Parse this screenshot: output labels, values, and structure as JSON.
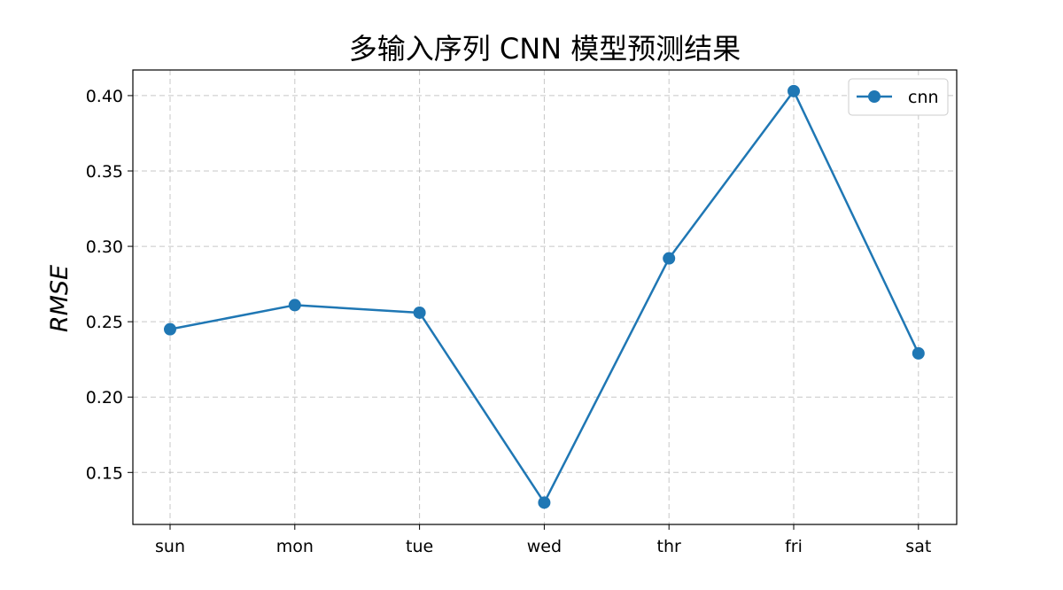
{
  "chart_data": {
    "type": "line",
    "title": "多输入序列 CNN 模型预测结果",
    "xlabel": "",
    "ylabel": "RMSE",
    "categories": [
      "sun",
      "mon",
      "tue",
      "wed",
      "thr",
      "fri",
      "sat"
    ],
    "series": [
      {
        "name": "cnn",
        "values": [
          0.245,
          0.261,
          0.256,
          0.13,
          0.292,
          0.403,
          0.229
        ],
        "color": "#1f77b4",
        "marker": "circle"
      }
    ],
    "yticks": [
      "0.15",
      "0.20",
      "0.25",
      "0.30",
      "0.35",
      "0.40"
    ],
    "ytick_values": [
      0.15,
      0.2,
      0.25,
      0.3,
      0.35,
      0.4
    ],
    "ylim": [
      0.1155,
      0.417
    ],
    "grid": true,
    "legend_position": "top-right"
  }
}
